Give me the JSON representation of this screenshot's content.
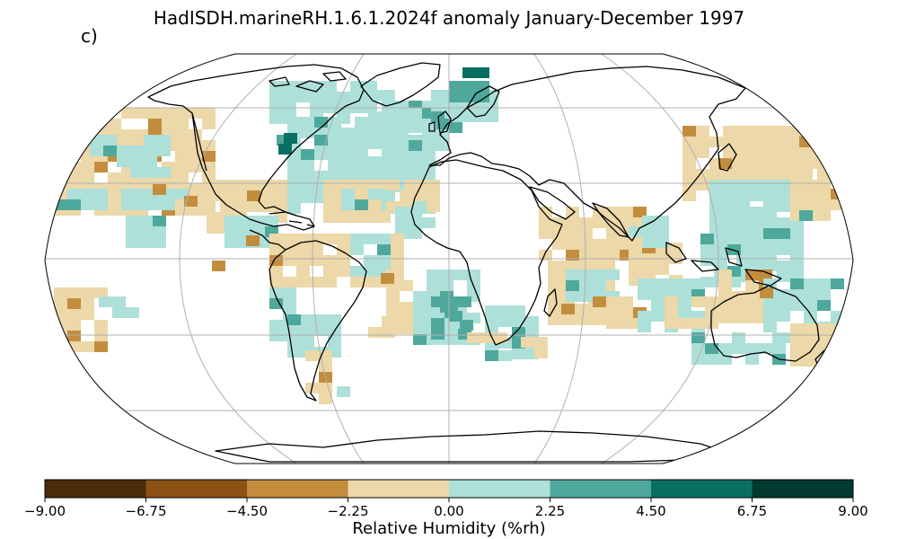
{
  "title": "HadISDH.marineRH.1.6.1.2024f anomaly January-December 1997",
  "panel_label": "c)",
  "colorbar": {
    "label": "Relative Humidity (%rh)",
    "ticks": [
      "−9.00",
      "−6.75",
      "−4.50",
      "−2.25",
      "0.00",
      "2.25",
      "4.50",
      "6.75",
      "9.00"
    ],
    "colors": [
      "#4a2c0b",
      "#8c5115",
      "#c48d3e",
      "#ecd8a8",
      "#ade0d9",
      "#4ea89b",
      "#0a6f63",
      "#003a30"
    ]
  },
  "map": {
    "projection": "Robinson",
    "grid": true,
    "coastlines": true
  }
}
